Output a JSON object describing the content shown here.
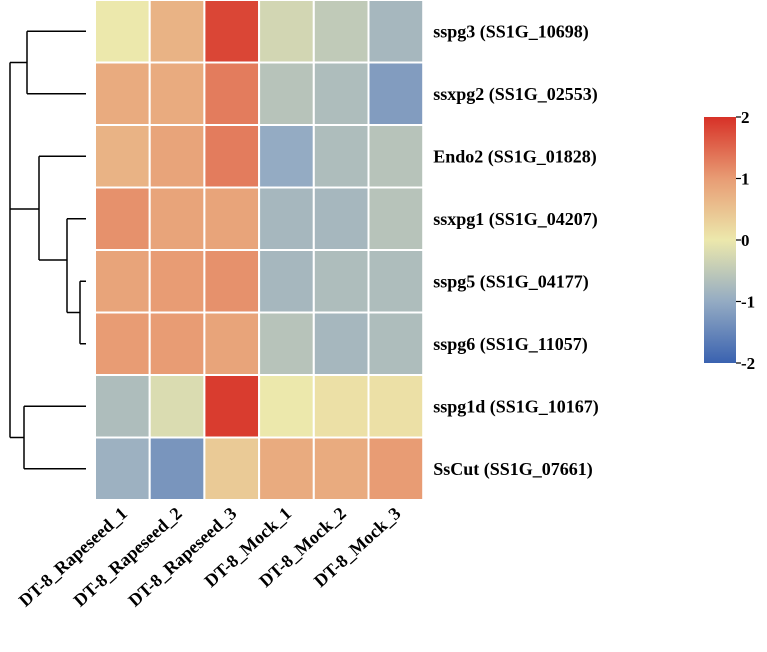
{
  "chart_data": {
    "type": "heatmap",
    "rows": [
      "sspg3 (SS1G_10698)",
      "ssxpg2 (SS1G_02553)",
      "Endo2 (SS1G_01828)",
      "ssxpg1 (SS1G_04207)",
      "sspg5 (SS1G_04177)",
      "sspg6 (SS1G_11057)",
      "sspg1d (SS1G_10167)",
      "SsCut (SS1G_07661)"
    ],
    "columns": [
      "DT-8_Rapeseed_1",
      "DT-8_Rapeseed_2",
      "DT-8_Rapeseed_3",
      "DT-8_Mock_1",
      "DT-8_Mock_2",
      "DT-8_Mock_3"
    ],
    "values": [
      [
        0.0,
        0.7,
        1.8,
        -0.3,
        -0.5,
        -0.8
      ],
      [
        0.8,
        0.8,
        1.3,
        -0.6,
        -0.7,
        -1.2
      ],
      [
        0.7,
        0.9,
        1.3,
        -1.0,
        -0.7,
        -0.6
      ],
      [
        1.1,
        0.9,
        0.9,
        -0.8,
        -0.8,
        -0.6
      ],
      [
        0.9,
        1.0,
        1.1,
        -0.8,
        -0.7,
        -0.7
      ],
      [
        1.0,
        1.0,
        0.9,
        -0.6,
        -0.8,
        -0.7
      ],
      [
        -0.7,
        -0.2,
        1.9,
        0.0,
        0.1,
        0.1
      ],
      [
        -0.9,
        -1.3,
        0.4,
        0.8,
        0.8,
        1.0
      ]
    ],
    "colorbar": {
      "ticks": [
        "2",
        "1",
        "0",
        "-1",
        "-2"
      ],
      "tick_values": [
        2,
        1,
        0,
        -1,
        -2
      ],
      "range": [
        -2,
        2
      ],
      "colors": [
        "#3a62b0",
        "#ece8ac",
        "#d73127"
      ]
    },
    "dendrogram": {
      "position": "left",
      "clusters": [
        [
          [
            0,
            1
          ],
          0.95
        ],
        [
          [
            2
          ],
          0.8
        ],
        [
          [
            3
          ],
          0.65
        ],
        [
          [
            4,
            5
          ],
          0.2
        ],
        [
          [
            6,
            7
          ],
          0.8
        ]
      ]
    }
  }
}
